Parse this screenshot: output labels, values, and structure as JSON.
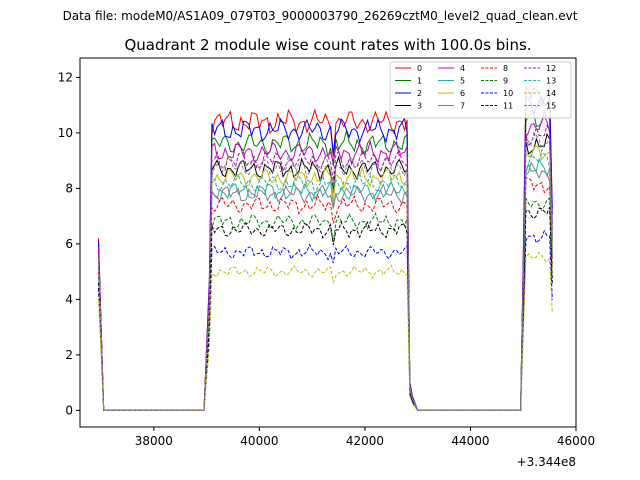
{
  "chart_data": {
    "type": "line",
    "suptitle": "Data file: modeM0/AS1A09_079T03_9000003790_26269cztM0_level2_quad_clean.evt",
    "title": "Quadrant 2 module wise count rates with 100.0s bins.",
    "xlabel": "",
    "ylabel": "",
    "x_offset_label": "+3.344e8",
    "xlim": [
      36600,
      46000
    ],
    "ylim": [
      -0.6,
      12.7
    ],
    "x_ticks": [
      38000,
      40000,
      42000,
      44000,
      46000
    ],
    "x_tick_labels": [
      "38000",
      "40000",
      "42000",
      "44000",
      "46000"
    ],
    "y_ticks": [
      0,
      2,
      4,
      6,
      8,
      10,
      12
    ],
    "y_tick_labels": [
      "0",
      "2",
      "4",
      "6",
      "8",
      "10",
      "12"
    ],
    "legend_position": "top-right",
    "grid": false,
    "segments": [
      {
        "start": 36950,
        "end": 37050,
        "step": 100
      },
      {
        "start": 37050,
        "end": 39000,
        "step": 100
      },
      {
        "start": 39050,
        "end": 42850,
        "step": 50
      },
      {
        "start": 42900,
        "end": 44950,
        "step": 100
      },
      {
        "start": 44950,
        "end": 45550,
        "step": 50
      }
    ],
    "series": [
      {
        "name": "0",
        "color": "#ff0000",
        "dash": "solid",
        "level": 10.4,
        "start": 6.2
      },
      {
        "name": "1",
        "color": "#008000",
        "dash": "solid",
        "level": 9.6,
        "start": 6.0
      },
      {
        "name": "2",
        "color": "#0000ff",
        "dash": "solid",
        "level": 10.1,
        "start": 6.1
      },
      {
        "name": "3",
        "color": "#000000",
        "dash": "solid",
        "level": 8.7,
        "start": 5.8
      },
      {
        "name": "4",
        "color": "#bf00bf",
        "dash": "solid",
        "level": 9.3,
        "start": 5.9
      },
      {
        "name": "5",
        "color": "#20b2aa",
        "dash": "solid",
        "level": 7.9,
        "start": 5.2
      },
      {
        "name": "6",
        "color": "#bfbf00",
        "dash": "solid",
        "level": 8.4,
        "start": 5.4
      },
      {
        "name": "7",
        "color": "#808080",
        "dash": "solid",
        "level": 7.8,
        "start": 5.3
      },
      {
        "name": "8",
        "color": "#ff0000",
        "dash": "dashed",
        "level": 7.4,
        "start": 5.0
      },
      {
        "name": "9",
        "color": "#008000",
        "dash": "dashed",
        "level": 6.8,
        "start": 4.8
      },
      {
        "name": "10",
        "color": "#0000ff",
        "dash": "dashed",
        "level": 5.7,
        "start": 4.4
      },
      {
        "name": "11",
        "color": "#000000",
        "dash": "dashed",
        "level": 6.5,
        "start": 4.6
      },
      {
        "name": "12",
        "color": "#bf00bf",
        "dash": "dashed",
        "level": 9.0,
        "start": 5.6
      },
      {
        "name": "13",
        "color": "#20b2aa",
        "dash": "dashed",
        "level": 8.2,
        "start": 5.3
      },
      {
        "name": "14",
        "color": "#bfbf00",
        "dash": "dashed",
        "level": 5.0,
        "start": 4.0
      },
      {
        "name": "15",
        "color": "#808080",
        "dash": "dashed",
        "level": 8.8,
        "start": 5.5
      }
    ]
  }
}
